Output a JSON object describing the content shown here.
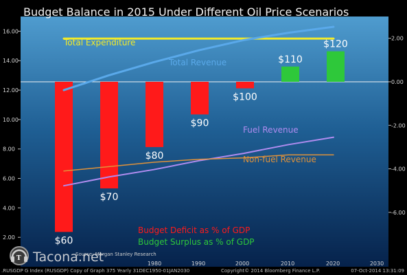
{
  "chart_data": {
    "type": "bar",
    "title": "Budget Balance in 2015 Under Different Oil Price Scenarios",
    "x_axis": {
      "ticks": [
        "1980",
        "1990",
        "2000",
        "2010",
        "2020",
        "2030"
      ]
    },
    "left_axis": {
      "ylim": [
        0,
        17
      ],
      "ticks": [
        "16.00",
        "14.00",
        "12.00",
        "10.00",
        "8.00",
        "6.00",
        "4.00",
        "2.00"
      ]
    },
    "right_axis": {
      "ylim": [
        -8.5,
        3.0
      ],
      "ticks": [
        "2.00",
        "0.00",
        "-2.00",
        "-4.00",
        "-6.00"
      ]
    },
    "categories": [
      "$60",
      "$70",
      "$80",
      "$90",
      "$100",
      "$110",
      "$120"
    ],
    "values": [
      -6.9,
      -4.9,
      -3.0,
      -1.5,
      -0.3,
      0.7,
      1.4
    ],
    "colors": {
      "deficit": "#ff1a1a",
      "surplus": "#2ec83a",
      "total_expenditure": "#f2ea2a",
      "total_revenue": "#5aa9ea",
      "fuel_revenue": "#b08cf0",
      "non_fuel_revenue": "#e0923a"
    },
    "lines": [
      {
        "name": "Total Expenditure",
        "values": [
          15.5,
          15.5,
          15.5,
          15.5,
          15.5,
          15.5,
          15.5
        ]
      },
      {
        "name": "Total Revenue",
        "values": [
          12.0,
          13.0,
          13.9,
          14.7,
          15.4,
          15.9,
          16.3
        ]
      },
      {
        "name": "Fuel Revenue",
        "values": [
          5.5,
          6.1,
          6.6,
          7.2,
          7.7,
          8.3,
          8.8
        ]
      },
      {
        "name": "Non-fuel Revenue",
        "values": [
          6.5,
          6.8,
          7.1,
          7.3,
          7.4,
          7.6,
          7.6
        ]
      }
    ],
    "legend": [
      {
        "label": "Budget Deficit as % of GDP",
        "color": "#ff1a1a"
      },
      {
        "label": "Budget Surplus as % of GDP",
        "color": "#2ec83a"
      }
    ],
    "source": "Source: Morgan Stanley Research"
  },
  "footer": {
    "left": ".RUSGDP G Index (RUSGDP) Copy of Graph 375  Yearly 31DEC1950-01JAN2030",
    "middle": "Copyright© 2014 Bloomberg Finance L.P.",
    "right": "07-Oct-2014 13:31:09"
  },
  "watermark": {
    "text": "Tacona.net"
  }
}
